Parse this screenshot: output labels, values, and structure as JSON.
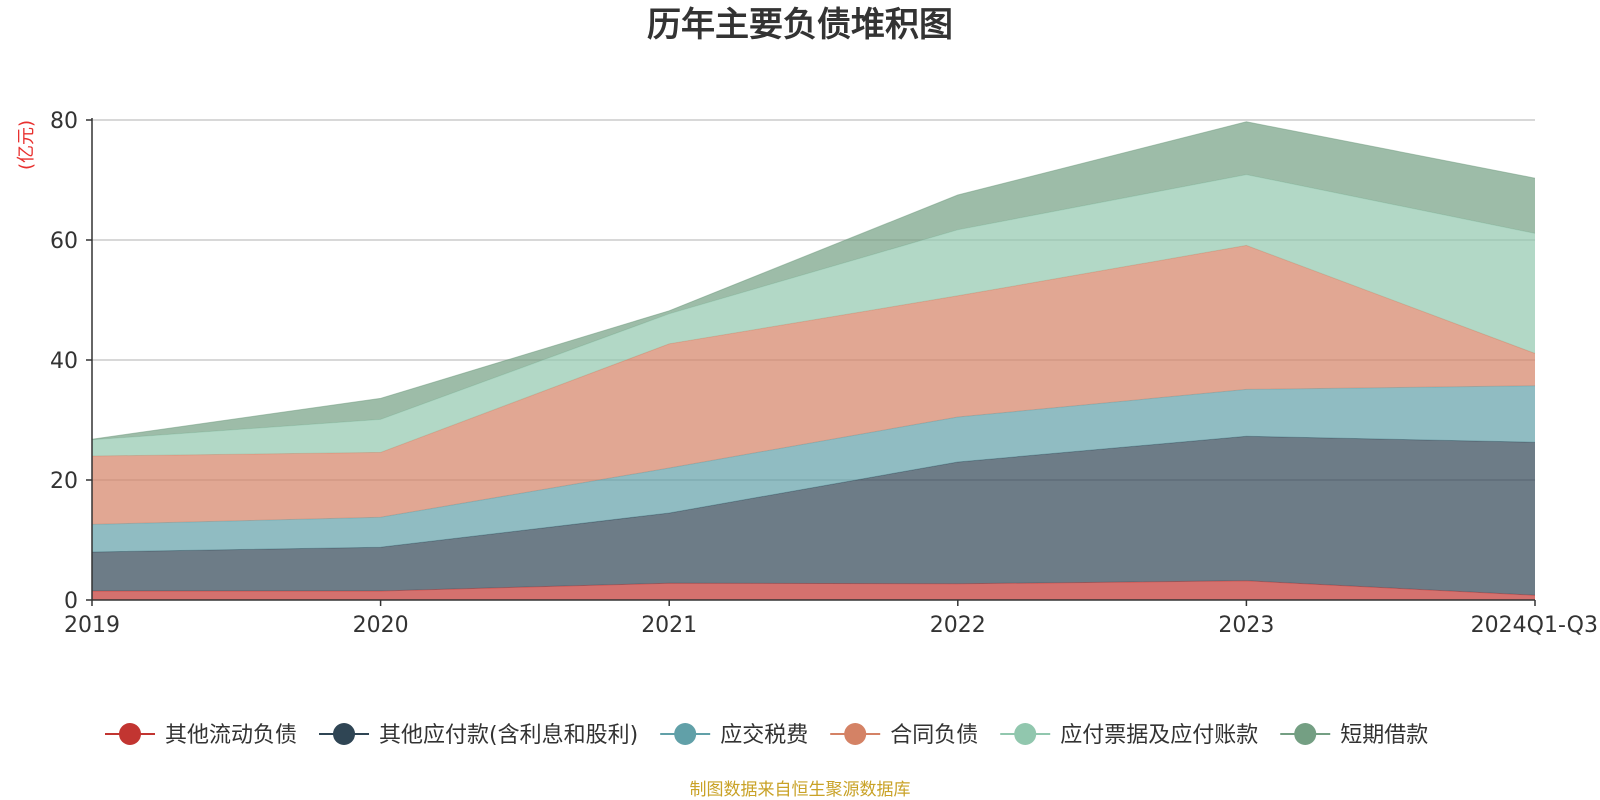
{
  "chart_data": {
    "type": "area",
    "stacked": true,
    "title": "历年主要负债堆积图",
    "unit_label": "(亿元)",
    "categories": [
      "2019",
      "2020",
      "2021",
      "2022",
      "2023",
      "2024Q1-Q3"
    ],
    "ylim": [
      0,
      80
    ],
    "yticks": [
      0,
      20,
      40,
      60,
      80
    ],
    "grid": true,
    "legend_position": "bottom",
    "series": [
      {
        "name": "其他流动负债",
        "color": "#c23531",
        "values": [
          1.5,
          1.5,
          2.8,
          2.7,
          3.2,
          0.8
        ]
      },
      {
        "name": "其他应付款(含利息和股利)",
        "color": "#2f4554",
        "values": [
          6.5,
          7.3,
          11.7,
          20.3,
          24.1,
          25.5
        ]
      },
      {
        "name": "应交税费",
        "color": "#61a0a8",
        "values": [
          4.6,
          5.0,
          7.5,
          7.5,
          7.8,
          9.4
        ]
      },
      {
        "name": "合同负债",
        "color": "#d48265",
        "values": [
          11.4,
          10.8,
          20.7,
          20.2,
          24.0,
          5.4
        ]
      },
      {
        "name": "应付票据及应付账款",
        "color": "#91c7ae",
        "values": [
          2.7,
          5.5,
          5.0,
          11.0,
          11.8,
          20.0
        ]
      },
      {
        "name": "短期借款",
        "color": "#749f83",
        "values": [
          0.1,
          3.5,
          0.5,
          5.8,
          8.8,
          9.2
        ]
      }
    ]
  },
  "source_note": "制图数据来自恒生聚源数据库"
}
